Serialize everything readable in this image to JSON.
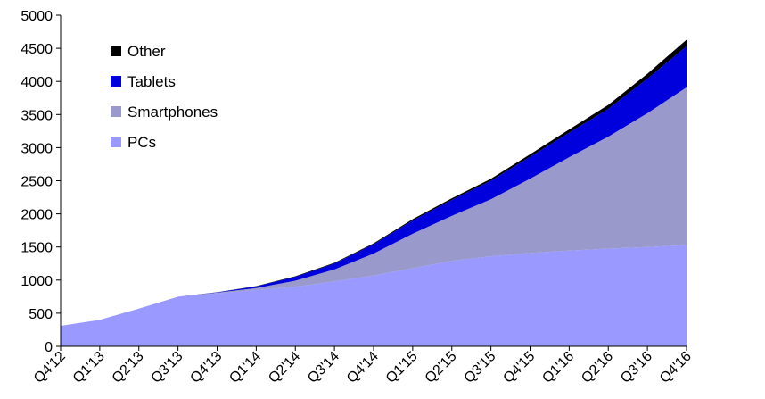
{
  "chart_data": {
    "type": "area",
    "stacked": true,
    "categories": [
      "Q4'12",
      "Q1'13",
      "Q2'13",
      "Q3'13",
      "Q4'13",
      "Q1'14",
      "Q2'14",
      "Q3'14",
      "Q4'14",
      "Q1'15",
      "Q2'15",
      "Q3'15",
      "Q4'15",
      "Q1'16",
      "Q2'16",
      "Q3'16",
      "Q4'16"
    ],
    "series": [
      {
        "name": "PCs",
        "color": "#9999ff",
        "values": [
          310,
          400,
          570,
          750,
          800,
          850,
          900,
          980,
          1070,
          1180,
          1290,
          1360,
          1410,
          1445,
          1475,
          1500,
          1530
        ]
      },
      {
        "name": "Smartphones",
        "color": "#9999cc",
        "values": [
          0,
          0,
          0,
          0,
          10,
          30,
          90,
          180,
          330,
          520,
          680,
          860,
          1120,
          1410,
          1690,
          2020,
          2380
        ]
      },
      {
        "name": "Tablets",
        "color": "#0000dd",
        "values": [
          0,
          0,
          0,
          0,
          5,
          25,
          60,
          90,
          140,
          200,
          240,
          280,
          330,
          370,
          420,
          520,
          620
        ]
      },
      {
        "name": "Other",
        "color": "#000000",
        "values": [
          0,
          0,
          0,
          0,
          2,
          5,
          8,
          12,
          15,
          20,
          25,
          30,
          40,
          50,
          60,
          75,
          100
        ]
      }
    ],
    "ylim": [
      0,
      5000
    ],
    "yticks": [
      0,
      500,
      1000,
      1500,
      2000,
      2500,
      3000,
      3500,
      4000,
      4500,
      5000
    ],
    "legend_position": "top-left",
    "legend_order": [
      "Other",
      "Tablets",
      "Smartphones",
      "PCs"
    ],
    "grid": false,
    "title": "",
    "xlabel": "",
    "ylabel": ""
  }
}
